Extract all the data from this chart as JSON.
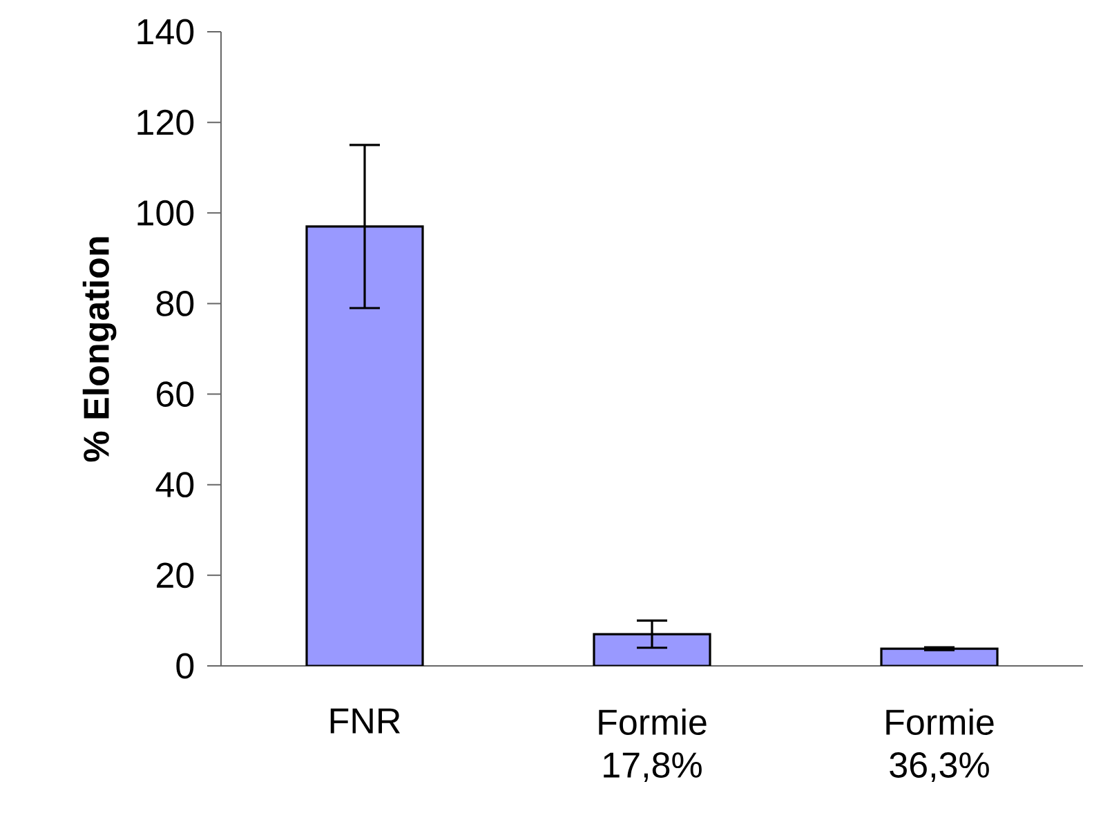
{
  "chart_data": {
    "type": "bar",
    "ylabel": "% Elongation",
    "categories": [
      "FNR",
      "Formie 17,8%",
      "Formie 36,3%"
    ],
    "values": [
      97,
      7,
      3.8
    ],
    "errors": [
      18,
      3,
      0.3
    ],
    "color": "#9999ff",
    "ylim": [
      0,
      140
    ],
    "yticks": [
      0,
      20,
      40,
      60,
      80,
      100,
      120,
      140
    ],
    "grid": false
  }
}
